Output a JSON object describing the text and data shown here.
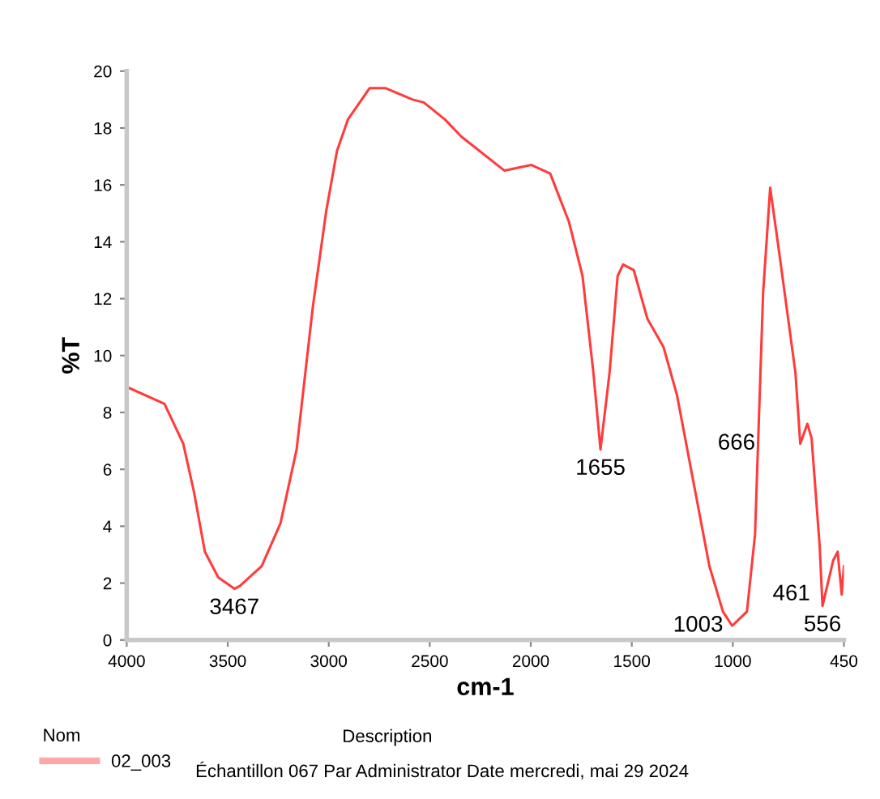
{
  "chart_data": {
    "type": "line",
    "xlabel": "cm-1",
    "ylabel": "%T",
    "xlim": [
      4000,
      450
    ],
    "xticks": [
      4000,
      3500,
      3000,
      2500,
      2000,
      1500,
      1000,
      450
    ],
    "ylim": [
      0,
      20
    ],
    "yticks": [
      0,
      2,
      4,
      6,
      8,
      10,
      12,
      14,
      16,
      18,
      20
    ],
    "grid": false,
    "legend": "bottom",
    "legend_title": "Nom",
    "series": [
      {
        "name": "02_003",
        "color": "#ff3b3b",
        "x": [
          4000,
          3813,
          3720,
          3667,
          3613,
          3547,
          3467,
          3440,
          3332,
          3239,
          3159,
          3079,
          3012,
          2959,
          2905,
          2798,
          2718,
          2585,
          2530,
          2425,
          2344,
          2130,
          1997,
          1904,
          1811,
          1744,
          1690,
          1655,
          1610,
          1570,
          1543,
          1490,
          1423,
          1343,
          1276,
          1196,
          1116,
          1049,
          1003,
          930,
          890,
          850,
          815,
          770,
          690,
          666,
          631,
          610,
          570,
          556,
          503,
          481,
          461,
          450
        ],
        "values": [
          8.9,
          8.3,
          6.9,
          5.2,
          3.1,
          2.2,
          1.8,
          1.9,
          2.6,
          4.1,
          6.7,
          11.7,
          15.1,
          17.2,
          18.3,
          19.4,
          19.4,
          19.0,
          18.9,
          18.3,
          17.7,
          16.5,
          16.7,
          16.4,
          14.7,
          12.8,
          9.4,
          6.7,
          9.4,
          12.8,
          13.2,
          13.0,
          11.3,
          10.3,
          8.6,
          5.6,
          2.6,
          1.0,
          0.5,
          1.0,
          3.7,
          12.2,
          15.9,
          13.6,
          9.4,
          6.9,
          7.6,
          7.1,
          3.3,
          1.2,
          2.8,
          3.1,
          1.6,
          2.6
        ]
      }
    ],
    "annotations": [
      {
        "text": "3467",
        "x": 3467,
        "y": 1.8
      },
      {
        "text": "1655",
        "x": 1655,
        "y": 6.7
      },
      {
        "text": "1003",
        "x": 1003,
        "y": 0.5
      },
      {
        "text": "666",
        "x": 666,
        "y": 6.9
      },
      {
        "text": "556",
        "x": 556,
        "y": 1.2
      },
      {
        "text": "461",
        "x": 461,
        "y": 1.6
      },
      "Description",
      "Échantillon 067 Par Administrator Date mercredi, mai 29 2024"
    ]
  }
}
